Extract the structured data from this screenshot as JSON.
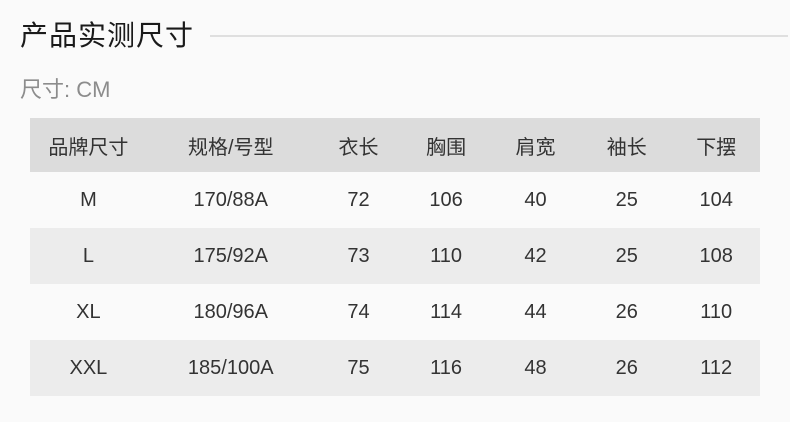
{
  "page": {
    "title": "产品实测尺寸",
    "subtitle": "尺寸: CM"
  },
  "size_table": {
    "columns": [
      "品牌尺寸",
      "规格/号型",
      "衣长",
      "胸围",
      "肩宽",
      "袖长",
      "下摆"
    ],
    "rows": [
      [
        "M",
        "170/88A",
        "72",
        "106",
        "40",
        "25",
        "104"
      ],
      [
        "L",
        "175/92A",
        "73",
        "110",
        "42",
        "25",
        "108"
      ],
      [
        "XL",
        "180/96A",
        "74",
        "114",
        "44",
        "26",
        "110"
      ],
      [
        "XXL",
        "185/100A",
        "75",
        "116",
        "48",
        "26",
        "112"
      ]
    ]
  },
  "colors": {
    "page_bg": "#fafafa",
    "header_bg": "#dcdcdc",
    "row_alt_bg": "#ececec",
    "text": "#333333",
    "title": "#1a1a1a",
    "subtitle": "#8c8c8c",
    "divider": "#dfdfdf"
  }
}
